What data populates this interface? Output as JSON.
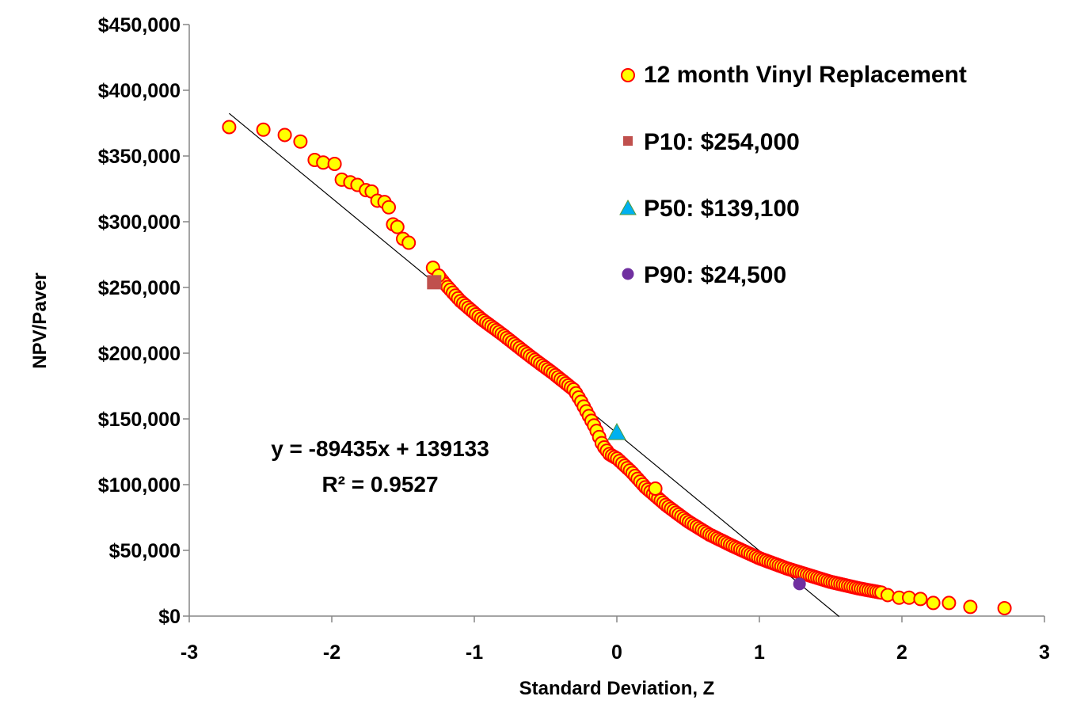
{
  "chart_data": {
    "type": "scatter",
    "title": "",
    "xlabel": "Standard Deviation, Z",
    "ylabel": "NPV/Paver",
    "xlim": [
      -3,
      3
    ],
    "ylim": [
      0,
      450000
    ],
    "x_ticks": [
      -3,
      -2,
      -1,
      0,
      1,
      2,
      3
    ],
    "x_tick_labels": [
      "-3",
      "-2",
      "-1",
      "0",
      "1",
      "2",
      "3"
    ],
    "y_ticks": [
      0,
      50000,
      100000,
      150000,
      200000,
      250000,
      300000,
      350000,
      400000,
      450000
    ],
    "y_tick_labels": [
      "$0",
      "$50,000",
      "$100,000",
      "$150,000",
      "$200,000",
      "$250,000",
      "$300,000",
      "$350,000",
      "$400,000",
      "$450,000"
    ],
    "grid": false,
    "legend_position": "top-right",
    "series": [
      {
        "name": "12 month Vinyl Replacement",
        "marker": "circle",
        "fill": "#ffff00",
        "stroke": "#ff0000",
        "curve_z": [
          -2.72,
          -2.4,
          -2.2,
          -2.0,
          -1.9,
          -1.7,
          -1.55,
          -1.45,
          -1.35,
          -1.2,
          -1.1,
          -0.95,
          -0.8,
          -0.6,
          -0.45,
          -0.3,
          -0.25,
          -0.15,
          -0.1,
          -0.05,
          0.0,
          0.1,
          0.2,
          0.35,
          0.5,
          0.65,
          0.8,
          1.0,
          1.2,
          1.35,
          1.5,
          1.7,
          1.9,
          2.1,
          2.3,
          2.5,
          2.72
        ],
        "curve_y": [
          372000,
          368000,
          360000,
          342000,
          330000,
          316000,
          298000,
          282000,
          272000,
          252000,
          240000,
          226000,
          214000,
          197000,
          185000,
          172000,
          163000,
          143000,
          130000,
          123000,
          120000,
          110000,
          98000,
          84000,
          72000,
          62000,
          54000,
          44000,
          36000,
          31000,
          26000,
          21000,
          17000,
          14000,
          11000,
          8000,
          6000
        ],
        "outliers": [
          {
            "x": -2.48,
            "y": 370000
          },
          {
            "x": -2.33,
            "y": 366000
          },
          {
            "x": -2.22,
            "y": 361000
          },
          {
            "x": -2.12,
            "y": 347000
          },
          {
            "x": -2.06,
            "y": 345000
          },
          {
            "x": -1.98,
            "y": 344000
          },
          {
            "x": -1.93,
            "y": 332000
          },
          {
            "x": -1.87,
            "y": 330000
          },
          {
            "x": -1.82,
            "y": 328000
          },
          {
            "x": -1.76,
            "y": 324000
          },
          {
            "x": -1.72,
            "y": 323000
          },
          {
            "x": -1.68,
            "y": 316000
          },
          {
            "x": -1.63,
            "y": 315000
          },
          {
            "x": -1.6,
            "y": 311000
          },
          {
            "x": -1.57,
            "y": 298000
          },
          {
            "x": -1.54,
            "y": 296000
          },
          {
            "x": -1.5,
            "y": 287000
          },
          {
            "x": -1.46,
            "y": 284000
          },
          {
            "x": -1.29,
            "y": 265000
          },
          {
            "x": -1.25,
            "y": 259000
          },
          {
            "x": 0.27,
            "y": 97000
          },
          {
            "x": 1.9,
            "y": 16000
          },
          {
            "x": 1.98,
            "y": 14000
          },
          {
            "x": 2.05,
            "y": 14000
          },
          {
            "x": 2.13,
            "y": 13000
          },
          {
            "x": 2.22,
            "y": 10000
          },
          {
            "x": 2.33,
            "y": 10000
          },
          {
            "x": 2.48,
            "y": 7000
          },
          {
            "x": 2.72,
            "y": 6000
          }
        ]
      },
      {
        "name": "P10: $254,000",
        "marker": "square",
        "color": "#c0504d",
        "x": -1.2816,
        "y": 254000
      },
      {
        "name": "P50: $139,100",
        "marker": "triangle",
        "color": "#00b0f0",
        "x": 0,
        "y": 139100
      },
      {
        "name": "P90: $24,500",
        "marker": "circle",
        "color": "#7030a0",
        "x": 1.2816,
        "y": 24500
      }
    ],
    "trendline": {
      "slope": -89435,
      "intercept": 139133,
      "x_range": [
        -2.72,
        1.56
      ],
      "equation_label": "y = -89435x + 139133",
      "r2_label": "R² = 0.9527"
    }
  }
}
